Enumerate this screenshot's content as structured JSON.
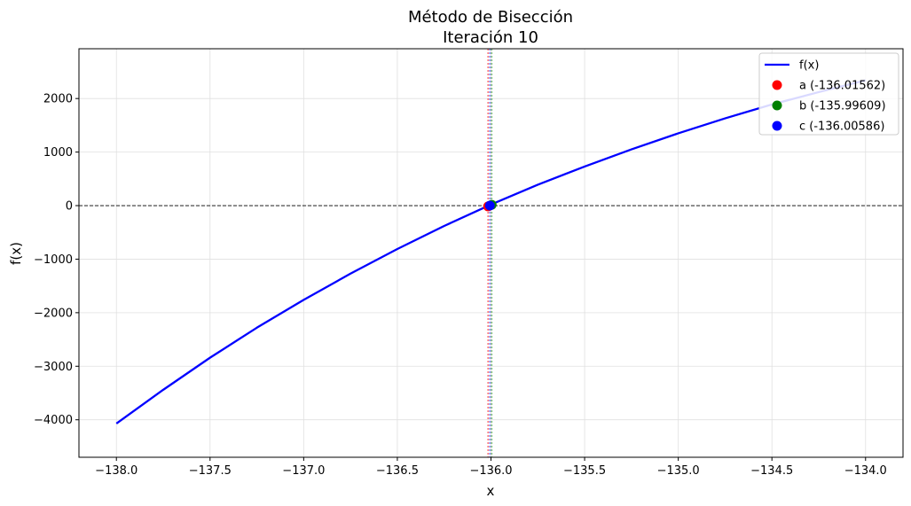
{
  "chart_data": {
    "type": "line",
    "title": "Método de Bisección",
    "subtitle": "Iteración 10",
    "xlabel": "x",
    "ylabel": "f(x)",
    "xlim": [
      -138.2,
      -133.8
    ],
    "ylim": [
      -4700,
      2930
    ],
    "xticks": [
      -138.0,
      -137.5,
      -137.0,
      -136.5,
      -136.0,
      -135.5,
      -135.0,
      -134.5,
      -134.0
    ],
    "xtick_labels": [
      "−138.0",
      "−137.5",
      "−137.0",
      "−136.5",
      "−136.0",
      "−135.5",
      "−135.0",
      "−134.5",
      "−134.0"
    ],
    "yticks": [
      -4000,
      -3000,
      -2000,
      -1000,
      0,
      1000,
      2000
    ],
    "ytick_labels": [
      "−4000",
      "−3000",
      "−2000",
      "−1000",
      "0",
      "1000",
      "2000"
    ],
    "grid": true,
    "legend_position": "top-right",
    "series": [
      {
        "name": "f(x)",
        "color": "#0000ff",
        "x": [
          -138.0,
          -137.75,
          -137.5,
          -137.25,
          -137.0,
          -136.75,
          -136.5,
          -136.25,
          -136.0,
          -135.75,
          -135.5,
          -135.25,
          -135.0,
          -134.75,
          -134.5,
          -134.25,
          -134.0
        ],
        "y": [
          -4070,
          -3440,
          -2840,
          -2280,
          -1760,
          -1270,
          -810,
          -380,
          20,
          390,
          730,
          1050,
          1350,
          1630,
          1890,
          2120,
          2340
        ]
      }
    ],
    "points": [
      {
        "label": "a (-136.01562)",
        "x": -136.01562,
        "y": -15,
        "color": "#ff0000"
      },
      {
        "label": "b (-135.99609)",
        "x": -135.99609,
        "y": 15,
        "color": "#008000"
      },
      {
        "label": "c (-136.00586)",
        "x": -136.00586,
        "y": 0,
        "color": "#0000ff"
      }
    ],
    "reference_lines": {
      "horizontal_y": 0,
      "vertical_x": [
        -136.01562,
        -135.99609,
        -136.00586
      ]
    }
  }
}
